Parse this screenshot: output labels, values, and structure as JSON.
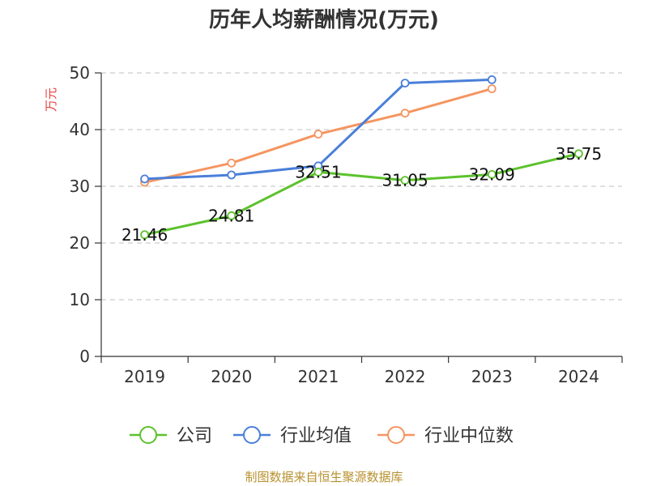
{
  "chart_data": {
    "type": "line",
    "title": "历年人均薪酬情况(万元)",
    "ylabel": "万元",
    "xlabel": "",
    "categories": [
      "2019",
      "2020",
      "2021",
      "2022",
      "2023",
      "2024"
    ],
    "ylim": [
      0,
      50
    ],
    "yticks": [
      0,
      10,
      20,
      30,
      40,
      50
    ],
    "grid": true,
    "legend_position": "bottom",
    "series": [
      {
        "name": "公司",
        "color": "#5cc22d",
        "values": [
          21.46,
          24.81,
          32.51,
          31.05,
          32.09,
          35.75
        ],
        "labels": [
          "21.46",
          "24.81",
          "32.51",
          "31.05",
          "32.09",
          "35.75"
        ]
      },
      {
        "name": "行业均值",
        "color": "#4a7fd9",
        "values": [
          31.3,
          32.0,
          33.6,
          48.2,
          48.8,
          null
        ]
      },
      {
        "name": "行业中位数",
        "color": "#f59560",
        "values": [
          30.7,
          34.1,
          39.2,
          42.9,
          47.2,
          null
        ]
      }
    ]
  },
  "source": "制图数据来自恒生聚源数据库"
}
